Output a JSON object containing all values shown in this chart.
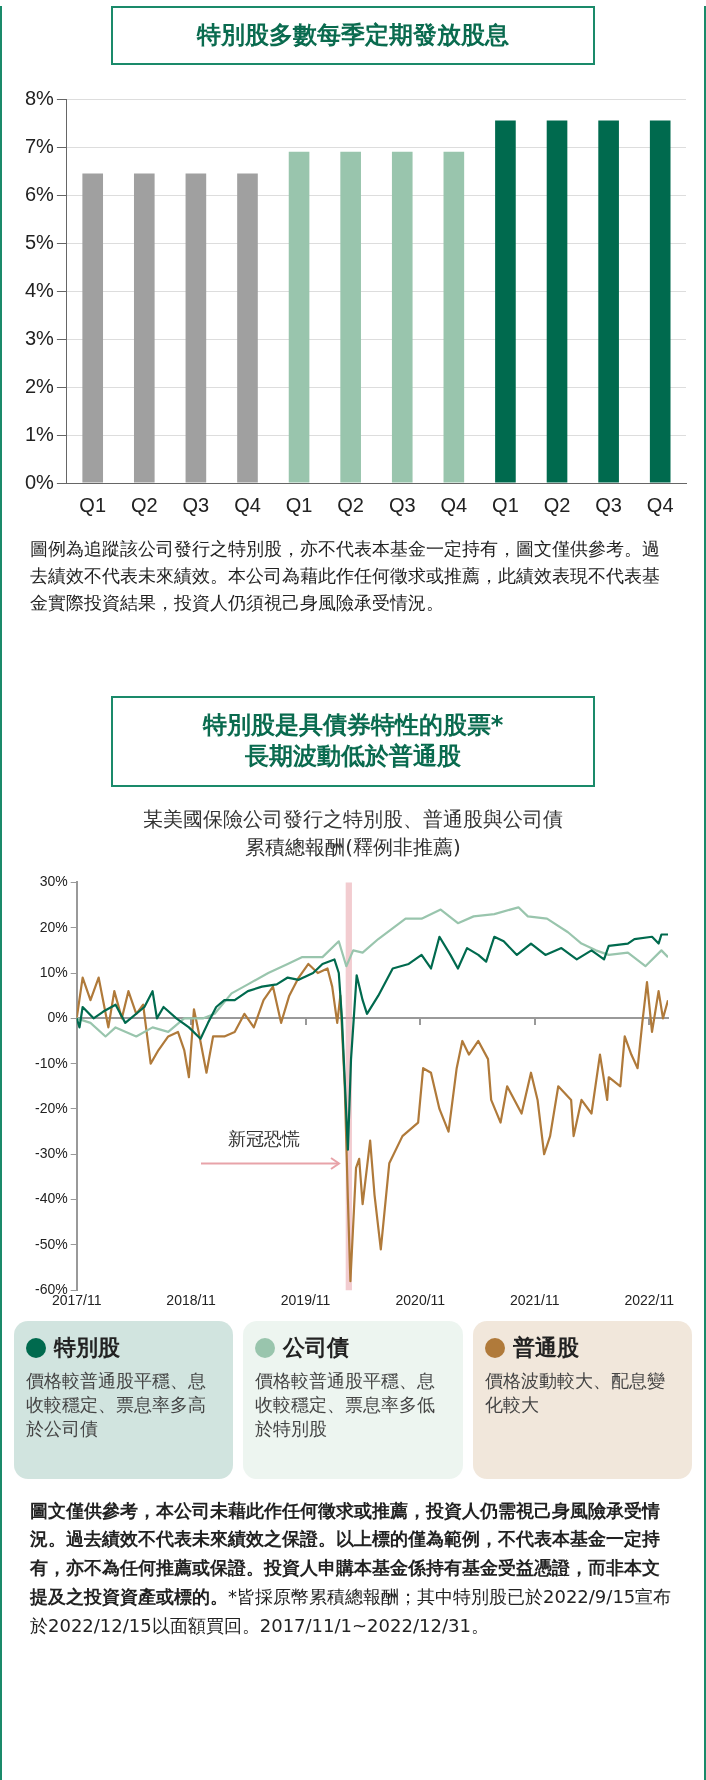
{
  "chart_data": [
    {
      "type": "bar",
      "title": "特別股多數每季定期發放股息",
      "categories": [
        "Q1",
        "Q2",
        "Q3",
        "Q4",
        "Q1",
        "Q2",
        "Q3",
        "Q4",
        "Q1",
        "Q2",
        "Q3",
        "Q4"
      ],
      "values": [
        6.45,
        6.45,
        6.45,
        6.45,
        6.9,
        6.9,
        6.9,
        6.9,
        7.55,
        7.55,
        7.55,
        7.55
      ],
      "colors": [
        "#a0a0a0",
        "#a0a0a0",
        "#a0a0a0",
        "#a0a0a0",
        "#99c5ad",
        "#99c5ad",
        "#99c5ad",
        "#99c5ad",
        "#006a4e",
        "#006a4e",
        "#006a4e",
        "#006a4e"
      ],
      "ylim": [
        0,
        8
      ],
      "yticks": [
        {
          "value": 0,
          "label": "0%"
        },
        {
          "value": 1,
          "label": "1%"
        },
        {
          "value": 2,
          "label": "2%"
        },
        {
          "value": 3,
          "label": "3%"
        },
        {
          "value": 4,
          "label": "4%"
        },
        {
          "value": 5,
          "label": "5%"
        },
        {
          "value": 6,
          "label": "6%"
        },
        {
          "value": 7,
          "label": "7%"
        },
        {
          "value": 8,
          "label": "8%"
        }
      ],
      "grid": "y",
      "annotations": [
        "圖例為追蹤該公司發行之特別股，亦不代表本基金一定持有，圖文僅供參考。過去績效不代表未來績效。本公司為藉此作任何徵求或推薦，此績效表現不代表基金實際投資結果，投資人仍須視己身風險承受情況。"
      ]
    },
    {
      "type": "line",
      "title": "特別股是具債券特性的股票*\n長期波動低於普通股",
      "subtitle": "某美國保險公司發行之特別股、普通股與公司債累積總報酬(釋例非推薦)",
      "series": [
        {
          "name": "特別股",
          "color": "#006a4e",
          "x": [
            "2017-11-01",
            "2017-11-10",
            "2017-11-20",
            "2017-12-25",
            "2018-01-25",
            "2018-03-05",
            "2018-04-05",
            "2018-06-05",
            "2018-07-01",
            "2018-07-15",
            "2018-08-05",
            "2018-09-15",
            "2018-10-25",
            "2018-12-01",
            "2018-12-25",
            "2019-01-20",
            "2019-02-15",
            "2019-03-20",
            "2019-05-01",
            "2019-06-15",
            "2019-08-01",
            "2019-09-05",
            "2019-10-10",
            "2019-11-25",
            "2019-12-25",
            "2020-02-01",
            "2020-02-15",
            "2020-02-25",
            "2020-03-15",
            "2020-03-25",
            "2020-04-12",
            "2020-05-01",
            "2020-05-15",
            "2020-06-20",
            "2020-08-05",
            "2020-09-25",
            "2020-11-05",
            "2020-12-05",
            "2021-01-01",
            "2021-02-05",
            "2021-03-01",
            "2021-03-30",
            "2021-05-05",
            "2021-05-30",
            "2021-06-25",
            "2021-07-25",
            "2021-09-05",
            "2021-10-20",
            "2021-12-05",
            "2022-01-25",
            "2022-03-15",
            "2022-05-01",
            "2022-06-10",
            "2022-06-25",
            "2022-08-25",
            "2022-09-15",
            "2022-11-10",
            "2022-12-01",
            "2022-12-10",
            "2022-12-31"
          ],
          "values": [
            0,
            -2,
            2.5,
            0,
            1.5,
            3,
            -1,
            2.5,
            6,
            0,
            2.5,
            0,
            -2,
            -4.5,
            -1,
            2.5,
            4,
            4,
            6,
            7,
            7.5,
            9,
            8.5,
            10,
            12,
            13,
            10,
            0,
            -29,
            -9,
            9.5,
            4,
            1,
            5,
            11,
            12,
            14,
            11,
            18,
            14,
            11,
            15.5,
            14,
            12.5,
            18,
            17,
            14,
            16.5,
            14,
            15.5,
            13,
            15,
            13,
            16,
            16.5,
            17.5,
            18,
            16.5,
            18.5,
            18.5
          ]
        },
        {
          "name": "公司債",
          "color": "#99c5ad",
          "x": [
            "2017-11-01",
            "2017-12-15",
            "2018-02-01",
            "2018-03-05",
            "2018-05-10",
            "2018-07-01",
            "2018-08-20",
            "2018-10-10",
            "2018-12-10",
            "2019-01-15",
            "2019-03-10",
            "2019-05-01",
            "2019-07-05",
            "2019-09-05",
            "2019-10-20",
            "2019-12-25",
            "2020-02-15",
            "2020-03-10",
            "2020-04-01",
            "2020-05-01",
            "2020-06-20",
            "2020-09-15",
            "2020-11-05",
            "2021-01-05",
            "2021-03-01",
            "2021-04-20",
            "2021-06-25",
            "2021-09-10",
            "2021-10-10",
            "2021-12-10",
            "2022-02-15",
            "2022-03-30",
            "2022-05-15",
            "2022-06-25",
            "2022-08-25",
            "2022-10-20",
            "2022-12-10",
            "2022-12-31"
          ],
          "values": [
            0,
            -1,
            -4,
            -2,
            -4,
            -2,
            -3,
            0,
            0,
            1,
            5.5,
            7.5,
            10,
            12,
            13.5,
            13.5,
            17,
            11.5,
            15,
            14.5,
            17.5,
            22,
            22,
            24,
            21,
            22.5,
            23,
            24.5,
            22.5,
            22,
            19,
            16.5,
            15,
            14,
            14.5,
            11.5,
            15,
            13.5
          ]
        },
        {
          "name": "普通股",
          "color": "#b07a3a",
          "x": [
            "2017-11-01",
            "2017-11-20",
            "2017-12-15",
            "2018-01-10",
            "2018-02-10",
            "2018-03-01",
            "2018-03-25",
            "2018-04-15",
            "2018-05-10",
            "2018-06-01",
            "2018-06-25",
            "2018-07-20",
            "2018-08-20",
            "2018-09-20",
            "2018-10-10",
            "2018-10-25",
            "2018-11-10",
            "2018-11-25",
            "2018-12-20",
            "2019-01-10",
            "2019-02-15",
            "2019-03-20",
            "2019-04-20",
            "2019-05-20",
            "2019-06-20",
            "2019-07-20",
            "2019-08-15",
            "2019-09-10",
            "2019-10-10",
            "2019-11-10",
            "2019-12-10",
            "2020-01-10",
            "2020-01-25",
            "2020-02-10",
            "2020-02-20",
            "2020-03-05",
            "2020-03-15",
            "2020-03-23",
            "2020-04-10",
            "2020-04-20",
            "2020-05-01",
            "2020-05-25",
            "2020-06-08",
            "2020-06-28",
            "2020-07-25",
            "2020-09-05",
            "2020-10-25",
            "2020-11-10",
            "2020-12-05",
            "2021-01-01",
            "2021-01-30",
            "2021-02-25",
            "2021-03-15",
            "2021-04-05",
            "2021-05-05",
            "2021-06-05",
            "2021-06-15",
            "2021-07-15",
            "2021-08-05",
            "2021-09-20",
            "2021-10-20",
            "2021-11-10",
            "2021-12-01",
            "2021-12-20",
            "2022-01-15",
            "2022-02-25",
            "2022-03-05",
            "2022-03-30",
            "2022-05-01",
            "2022-05-28",
            "2022-06-20",
            "2022-06-25",
            "2022-08-01",
            "2022-08-15",
            "2022-09-05",
            "2022-09-25",
            "2022-10-10",
            "2022-10-25",
            "2022-11-10",
            "2022-12-01",
            "2022-12-15",
            "2022-12-31"
          ],
          "values": [
            0,
            9,
            4,
            9,
            -2,
            6,
            0,
            6,
            1,
            3,
            -10,
            -7,
            -4,
            -3,
            -7,
            -13,
            2,
            -3,
            -12,
            -4,
            -4,
            -3,
            1,
            -2,
            4,
            7,
            -1,
            5,
            9,
            12,
            10,
            11,
            7,
            -1,
            5,
            -15,
            -40,
            -58,
            -33,
            -31,
            -41,
            -27,
            -39,
            -51,
            -32,
            -26,
            -23,
            -11,
            -12,
            -20,
            -25,
            -11,
            -5,
            -8,
            -5,
            -9,
            -18,
            -23,
            -15,
            -21,
            -12,
            -18,
            -30,
            -26,
            -15,
            -18,
            -26,
            -18,
            -21,
            -8,
            -18,
            -13,
            -15,
            -4,
            -8,
            -11,
            -1,
            8,
            -3,
            6,
            0,
            4
          ]
        }
      ],
      "xlim": [
        "2017-11-01",
        "2022-12-31"
      ],
      "xticks": [
        {
          "value": "2017-11-01",
          "label": "2017/11"
        },
        {
          "value": "2018-11-01",
          "label": "2018/11"
        },
        {
          "value": "2019-11-01",
          "label": "2019/11"
        },
        {
          "value": "2020-11-01",
          "label": "2020/11"
        },
        {
          "value": "2021-11-01",
          "label": "2021/11"
        },
        {
          "value": "2022-11-01",
          "label": "2022/11"
        }
      ],
      "ylim": [
        -60,
        30
      ],
      "yticks": [
        {
          "value": 30,
          "label": "30%"
        },
        {
          "value": 20,
          "label": "20%"
        },
        {
          "value": 10,
          "label": "10%"
        },
        {
          "value": 0,
          "label": "0%"
        },
        {
          "value": -10,
          "label": "-10%"
        },
        {
          "value": -20,
          "label": "-20%"
        },
        {
          "value": -30,
          "label": "-30%"
        },
        {
          "value": -40,
          "label": "-40%"
        },
        {
          "value": -50,
          "label": "-50%"
        },
        {
          "value": -60,
          "label": "-60%"
        }
      ],
      "bands": [
        {
          "axis": "x",
          "from": "2020-03-08",
          "to": "2020-03-28",
          "label": "新冠恐慌",
          "color": "#e8a3a9"
        }
      ],
      "legend": "bottom",
      "annotations": [
        "價格較普通股平穩、息收較穩定、票息率多高於公司債",
        "價格較普通股平穩、息收較穩定、票息率多低於特別股",
        "價格波動較大、配息變化較大",
        "圖文僅供參考，本公司未藉此作任何徵求或推薦，投資人仍需視己身風險承受情況。過去績效不代表未來績效之保證。以上標的僅為範例，不代表本基金一定持有，亦不為任何推薦或保證。投資人申購本基金係持有基金受益憑證，而非本文提及之投資資產或標的。",
        "*皆採原幣累積總報酬；其中特別股已於2022/9/15宣布於2022/12/15以面額買回。2017/11/1~2022/12/31。"
      ]
    }
  ]
}
